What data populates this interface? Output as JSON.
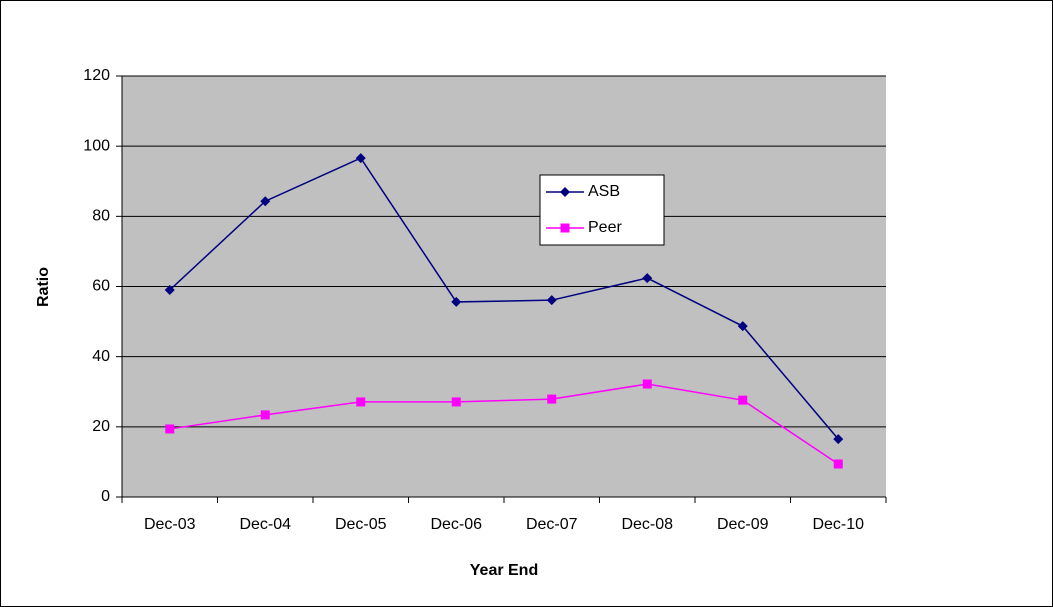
{
  "chart_data": {
    "type": "line",
    "x_label": "Year End",
    "y_label": "Ratio",
    "categories": [
      "Dec-03",
      "Dec-04",
      "Dec-05",
      "Dec-06",
      "Dec-07",
      "Dec-08",
      "Dec-09",
      "Dec-10"
    ],
    "series": [
      {
        "name": "ASB",
        "color": "#000080",
        "marker": "diamond",
        "values": [
          59,
          84.3,
          96.6,
          55.6,
          56.1,
          62.4,
          48.7,
          16.5
        ]
      },
      {
        "name": "Peer",
        "color": "#ff00ff",
        "marker": "square",
        "values": [
          19.4,
          23.4,
          27.1,
          27.1,
          27.9,
          32.2,
          27.6,
          9.4
        ]
      }
    ],
    "ylim": [
      0,
      120
    ],
    "yticks": [
      0,
      20,
      40,
      60,
      80,
      100,
      120
    ],
    "grid": true
  }
}
